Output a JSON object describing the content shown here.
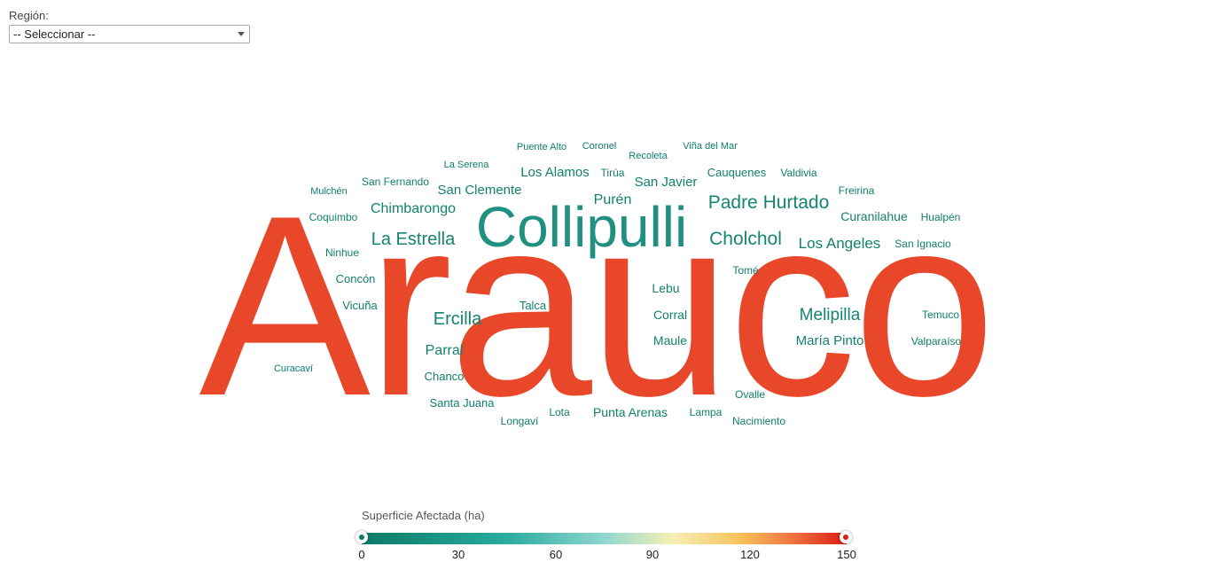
{
  "filter": {
    "label": "Región:",
    "selected": "-- Seleccionar --"
  },
  "legend": {
    "title": "Superficie Afectada (ha)",
    "ticks": [
      "0",
      "30",
      "60",
      "90",
      "120",
      "150"
    ],
    "min_value": 0,
    "max_value": 150
  },
  "colors": {
    "low": "#0b7a64",
    "mid": "#2a9d8f",
    "high": "#e8472a"
  },
  "chart_data": {
    "type": "wordcloud",
    "value_range": [
      0,
      150
    ],
    "words": [
      {
        "text": "Arauco",
        "value": 150
      },
      {
        "text": "Collipulli",
        "value": 25
      },
      {
        "text": "Padre Hurtado",
        "value": 12
      },
      {
        "text": "Cholchol",
        "value": 12
      },
      {
        "text": "La Estrella",
        "value": 11
      },
      {
        "text": "Melipilla",
        "value": 11
      },
      {
        "text": "Ercilla",
        "value": 11
      },
      {
        "text": "Los Angeles",
        "value": 10
      },
      {
        "text": "Chimbarongo",
        "value": 9
      },
      {
        "text": "San Clemente",
        "value": 8
      },
      {
        "text": "Los Alamos",
        "value": 8
      },
      {
        "text": "Purén",
        "value": 8
      },
      {
        "text": "San Javier",
        "value": 8
      },
      {
        "text": "Parral",
        "value": 8
      },
      {
        "text": "María Pinto",
        "value": 8
      },
      {
        "text": "Punta Arenas",
        "value": 7
      },
      {
        "text": "Curanilahue",
        "value": 7
      },
      {
        "text": "Lebu",
        "value": 7
      },
      {
        "text": "Corral",
        "value": 7
      },
      {
        "text": "Maule",
        "value": 7
      },
      {
        "text": "Santa Juana",
        "value": 7
      },
      {
        "text": "Cauquenes",
        "value": 6
      },
      {
        "text": "Concón",
        "value": 6
      },
      {
        "text": "Vicuña",
        "value": 6
      },
      {
        "text": "Talca",
        "value": 6
      },
      {
        "text": "Chanco",
        "value": 6
      },
      {
        "text": "Coquimbo",
        "value": 6
      },
      {
        "text": "Ninhue",
        "value": 6
      },
      {
        "text": "San Fernando",
        "value": 5
      },
      {
        "text": "Hualpén",
        "value": 5
      },
      {
        "text": "San Ignacio",
        "value": 5
      },
      {
        "text": "Temuco",
        "value": 5
      },
      {
        "text": "Valparaíso",
        "value": 5
      },
      {
        "text": "Ovalle",
        "value": 5
      },
      {
        "text": "Lampa",
        "value": 5
      },
      {
        "text": "Nacimiento",
        "value": 5
      },
      {
        "text": "Longaví",
        "value": 5
      },
      {
        "text": "Lota",
        "value": 5
      },
      {
        "text": "Tomé",
        "value": 5
      },
      {
        "text": "Tirúa",
        "value": 5
      },
      {
        "text": "Valdivia",
        "value": 5
      },
      {
        "text": "Freirina",
        "value": 5
      },
      {
        "text": "Mulchén",
        "value": 4
      },
      {
        "text": "La Serena",
        "value": 4
      },
      {
        "text": "Puente Alto",
        "value": 4
      },
      {
        "text": "Coronel",
        "value": 4
      },
      {
        "text": "Recoleta",
        "value": 4
      },
      {
        "text": "Viña del Mar",
        "value": 4
      },
      {
        "text": "Curacaví",
        "value": 4
      }
    ]
  }
}
